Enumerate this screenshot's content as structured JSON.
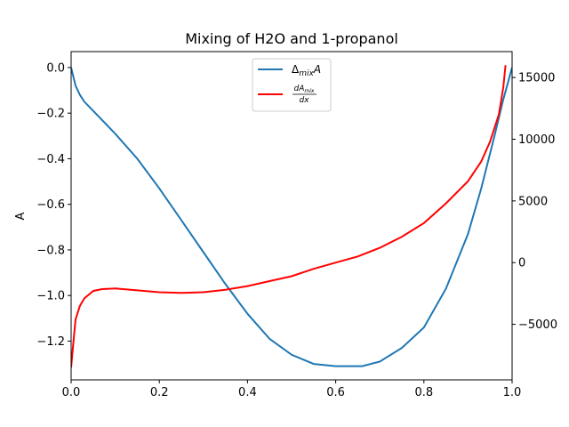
{
  "chart_data": {
    "type": "line",
    "title": "Mixing of H2O and 1-propanol",
    "xlabel": "",
    "ylabel": "A",
    "y2label": "",
    "xlim": [
      0.0,
      1.0
    ],
    "ylim": [
      -1.37,
      0.07
    ],
    "y2lim": [
      -9500,
      17100
    ],
    "xticks": [
      "0.0",
      "0.2",
      "0.4",
      "0.6",
      "0.8",
      "1.0"
    ],
    "yticks": [
      "0.0",
      "−0.2",
      "−0.4",
      "−0.6",
      "−0.8",
      "−1.0",
      "−1.2"
    ],
    "y2ticks": [
      "15000",
      "10000",
      "5000",
      "0",
      "−5000"
    ],
    "grid": false,
    "legend_position": "top-center",
    "legend": {
      "series_a": {
        "base": "Δ",
        "sub": "mix",
        "tail": "A"
      },
      "series_b": {
        "num": "dA",
        "num_sub": "mix",
        "den": "dx"
      }
    },
    "series": [
      {
        "axis": "left",
        "color": "#1f77b4",
        "x": [
          0.0,
          0.005,
          0.01,
          0.02,
          0.03,
          0.05,
          0.08,
          0.1,
          0.15,
          0.2,
          0.25,
          0.3,
          0.35,
          0.4,
          0.45,
          0.5,
          0.55,
          0.6,
          0.63,
          0.66,
          0.7,
          0.75,
          0.8,
          0.85,
          0.9,
          0.93,
          0.96,
          0.98,
          1.0
        ],
        "y": [
          0.0,
          -0.04,
          -0.08,
          -0.12,
          -0.15,
          -0.19,
          -0.25,
          -0.29,
          -0.4,
          -0.53,
          -0.67,
          -0.81,
          -0.95,
          -1.08,
          -1.19,
          -1.26,
          -1.3,
          -1.31,
          -1.31,
          -1.31,
          -1.29,
          -1.23,
          -1.14,
          -0.97,
          -0.73,
          -0.53,
          -0.3,
          -0.14,
          0.0
        ]
      },
      {
        "axis": "right",
        "color": "#ff0000",
        "x": [
          0.0,
          0.005,
          0.01,
          0.02,
          0.03,
          0.05,
          0.07,
          0.1,
          0.15,
          0.2,
          0.25,
          0.3,
          0.35,
          0.4,
          0.45,
          0.5,
          0.55,
          0.6,
          0.65,
          0.7,
          0.75,
          0.8,
          0.85,
          0.9,
          0.93,
          0.95,
          0.97,
          0.98,
          0.985
        ],
        "y": [
          -8500,
          -6500,
          -4600,
          -3500,
          -2900,
          -2300,
          -2150,
          -2100,
          -2250,
          -2400,
          -2450,
          -2400,
          -2200,
          -1900,
          -1500,
          -1100,
          -500,
          0,
          500,
          1200,
          2100,
          3200,
          4800,
          6600,
          8200,
          9800,
          12000,
          14200,
          16000
        ]
      }
    ]
  }
}
